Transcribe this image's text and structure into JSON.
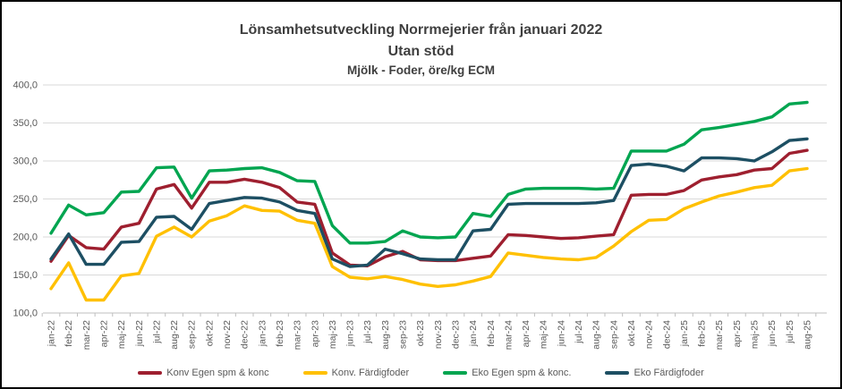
{
  "chart_data": {
    "type": "line",
    "title_lines": [
      "Lönsamhetsutveckling Norrmejerier från januari 2022",
      "Utan stöd",
      "Mjölk - Foder, öre/kg ECM"
    ],
    "legend_position": "bottom",
    "grid": "horizontal",
    "ylim": [
      100,
      400
    ],
    "y_ticks": {
      "values": [
        100,
        150,
        200,
        250,
        300,
        350,
        400
      ],
      "labels": [
        "100,0",
        "150,0",
        "200,0",
        "250,0",
        "300,0",
        "350,0",
        "400,0"
      ]
    },
    "categories": [
      "jan-22",
      "feb-22",
      "mar-22",
      "apr-22",
      "maj-22",
      "jun-22",
      "jul-22",
      "aug-22",
      "sep-22",
      "okt-22",
      "nov-22",
      "dec-22",
      "jan-23",
      "feb-23",
      "mar-23",
      "apr-23",
      "maj-23",
      "jun-23",
      "jul-23",
      "aug-23",
      "sep-23",
      "okt-23",
      "nov-23",
      "dec-23",
      "jan-24",
      "feb-24",
      "mar-24",
      "apr-24",
      "maj-24",
      "jun-24",
      "jul-24",
      "aug-24",
      "sep-24",
      "okt-24",
      "nov-24",
      "dec-24",
      "jan-25",
      "feb-25",
      "mar-25",
      "apr-25",
      "maj-25",
      "jun-25",
      "jul-25",
      "aug-25"
    ],
    "series": [
      {
        "name": "Konv Egen spm & konc",
        "color": "#9e1f2f",
        "values": [
          168,
          202,
          186,
          184,
          213,
          218,
          263,
          269,
          238,
          272,
          272,
          276,
          272,
          265,
          246,
          243,
          179,
          163,
          162,
          174,
          181,
          170,
          169,
          169,
          172,
          175,
          203,
          202,
          200,
          198,
          199,
          201,
          203,
          255,
          256,
          256,
          261,
          275,
          279,
          282,
          288,
          290,
          310,
          314
        ]
      },
      {
        "name": "Konv. Färdigfoder",
        "color": "#ffc000",
        "values": [
          132,
          166,
          117,
          117,
          149,
          152,
          201,
          213,
          200,
          221,
          228,
          241,
          235,
          234,
          222,
          218,
          161,
          147,
          145,
          148,
          144,
          138,
          135,
          137,
          142,
          148,
          179,
          176,
          173,
          171,
          170,
          173,
          188,
          207,
          222,
          223,
          237,
          246,
          254,
          259,
          265,
          268,
          287,
          290
        ]
      },
      {
        "name": "Eko Egen spm & konc.",
        "color": "#00a550",
        "values": [
          205,
          242,
          229,
          232,
          259,
          260,
          291,
          292,
          251,
          287,
          288,
          290,
          291,
          285,
          274,
          273,
          215,
          192,
          192,
          194,
          208,
          200,
          199,
          200,
          231,
          227,
          256,
          263,
          264,
          264,
          264,
          263,
          264,
          313,
          313,
          313,
          322,
          341,
          344,
          348,
          352,
          358,
          375,
          377
        ]
      },
      {
        "name": "Eko Färdigfoder",
        "color": "#1d4f63",
        "values": [
          171,
          204,
          164,
          164,
          193,
          194,
          226,
          227,
          210,
          244,
          248,
          252,
          251,
          246,
          235,
          231,
          171,
          161,
          163,
          184,
          178,
          171,
          170,
          170,
          208,
          210,
          243,
          244,
          244,
          244,
          244,
          245,
          248,
          294,
          296,
          293,
          287,
          304,
          304,
          303,
          300,
          312,
          327,
          329
        ]
      }
    ]
  }
}
